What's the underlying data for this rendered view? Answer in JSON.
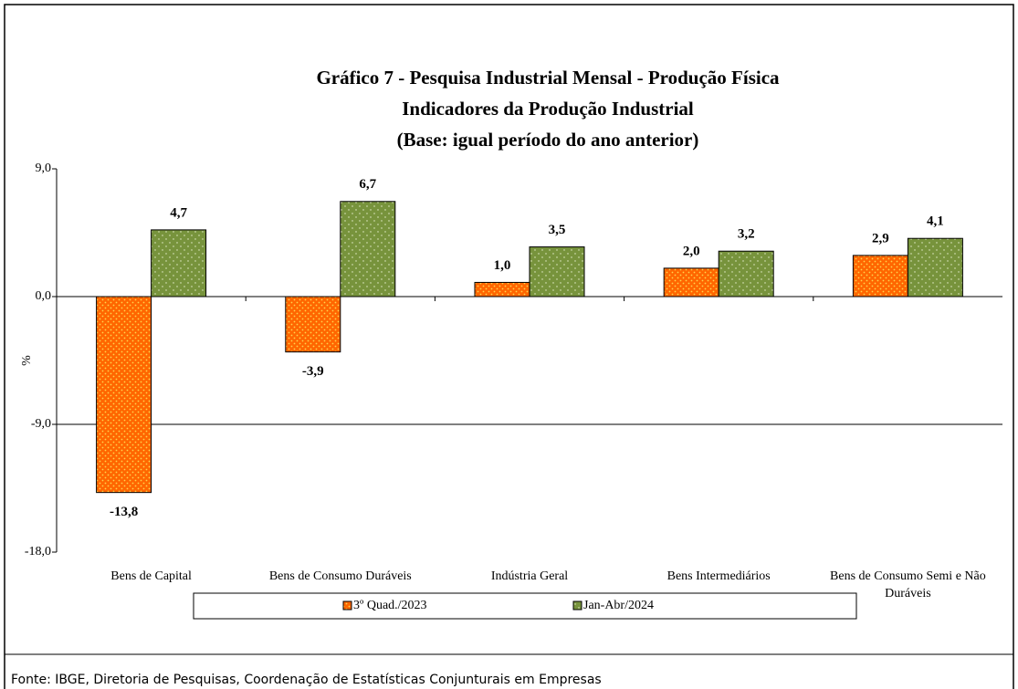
{
  "chart_data": {
    "type": "bar",
    "title": "Gráfico 7 - Pesquisa Industrial Mensal - Produção Física",
    "subtitle": [
      "Indicadores da Produção Industrial",
      "(Base: igual período do ano anterior)"
    ],
    "y_label": "%",
    "categories": [
      "Bens de Capital",
      "Bens de Consumo Duráveis",
      "Indústria Geral",
      "Bens Intermediários",
      "Bens de Consumo Semi e Não Duráveis"
    ],
    "series": [
      {
        "name": "3º Quad./2023",
        "color": "#ff6600",
        "values": [
          -13.8,
          -3.9,
          1.0,
          2.0,
          2.9
        ],
        "value_labels": [
          "-13,8",
          "-3,9",
          "1,0",
          "2,0",
          "2,9"
        ]
      },
      {
        "name": "Jan-Abr/2024",
        "color": "#77933c",
        "values": [
          4.7,
          6.7,
          3.5,
          3.2,
          4.1
        ],
        "value_labels": [
          "4,7",
          "6,7",
          "3,5",
          "3,2",
          "4,1"
        ]
      }
    ],
    "ylim": [
      -18,
      9
    ],
    "yticks": [
      {
        "value": 9,
        "label": "9,0"
      },
      {
        "value": 0,
        "label": "0,0"
      },
      {
        "value": -9,
        "label": "-9,0"
      },
      {
        "value": -18,
        "label": "-18,0"
      }
    ],
    "grid": true,
    "legend": "bottom",
    "source": "Fonte: IBGE, Diretoria de Pesquisas, Coordenação de Estatísticas Conjunturais em Empresas"
  }
}
